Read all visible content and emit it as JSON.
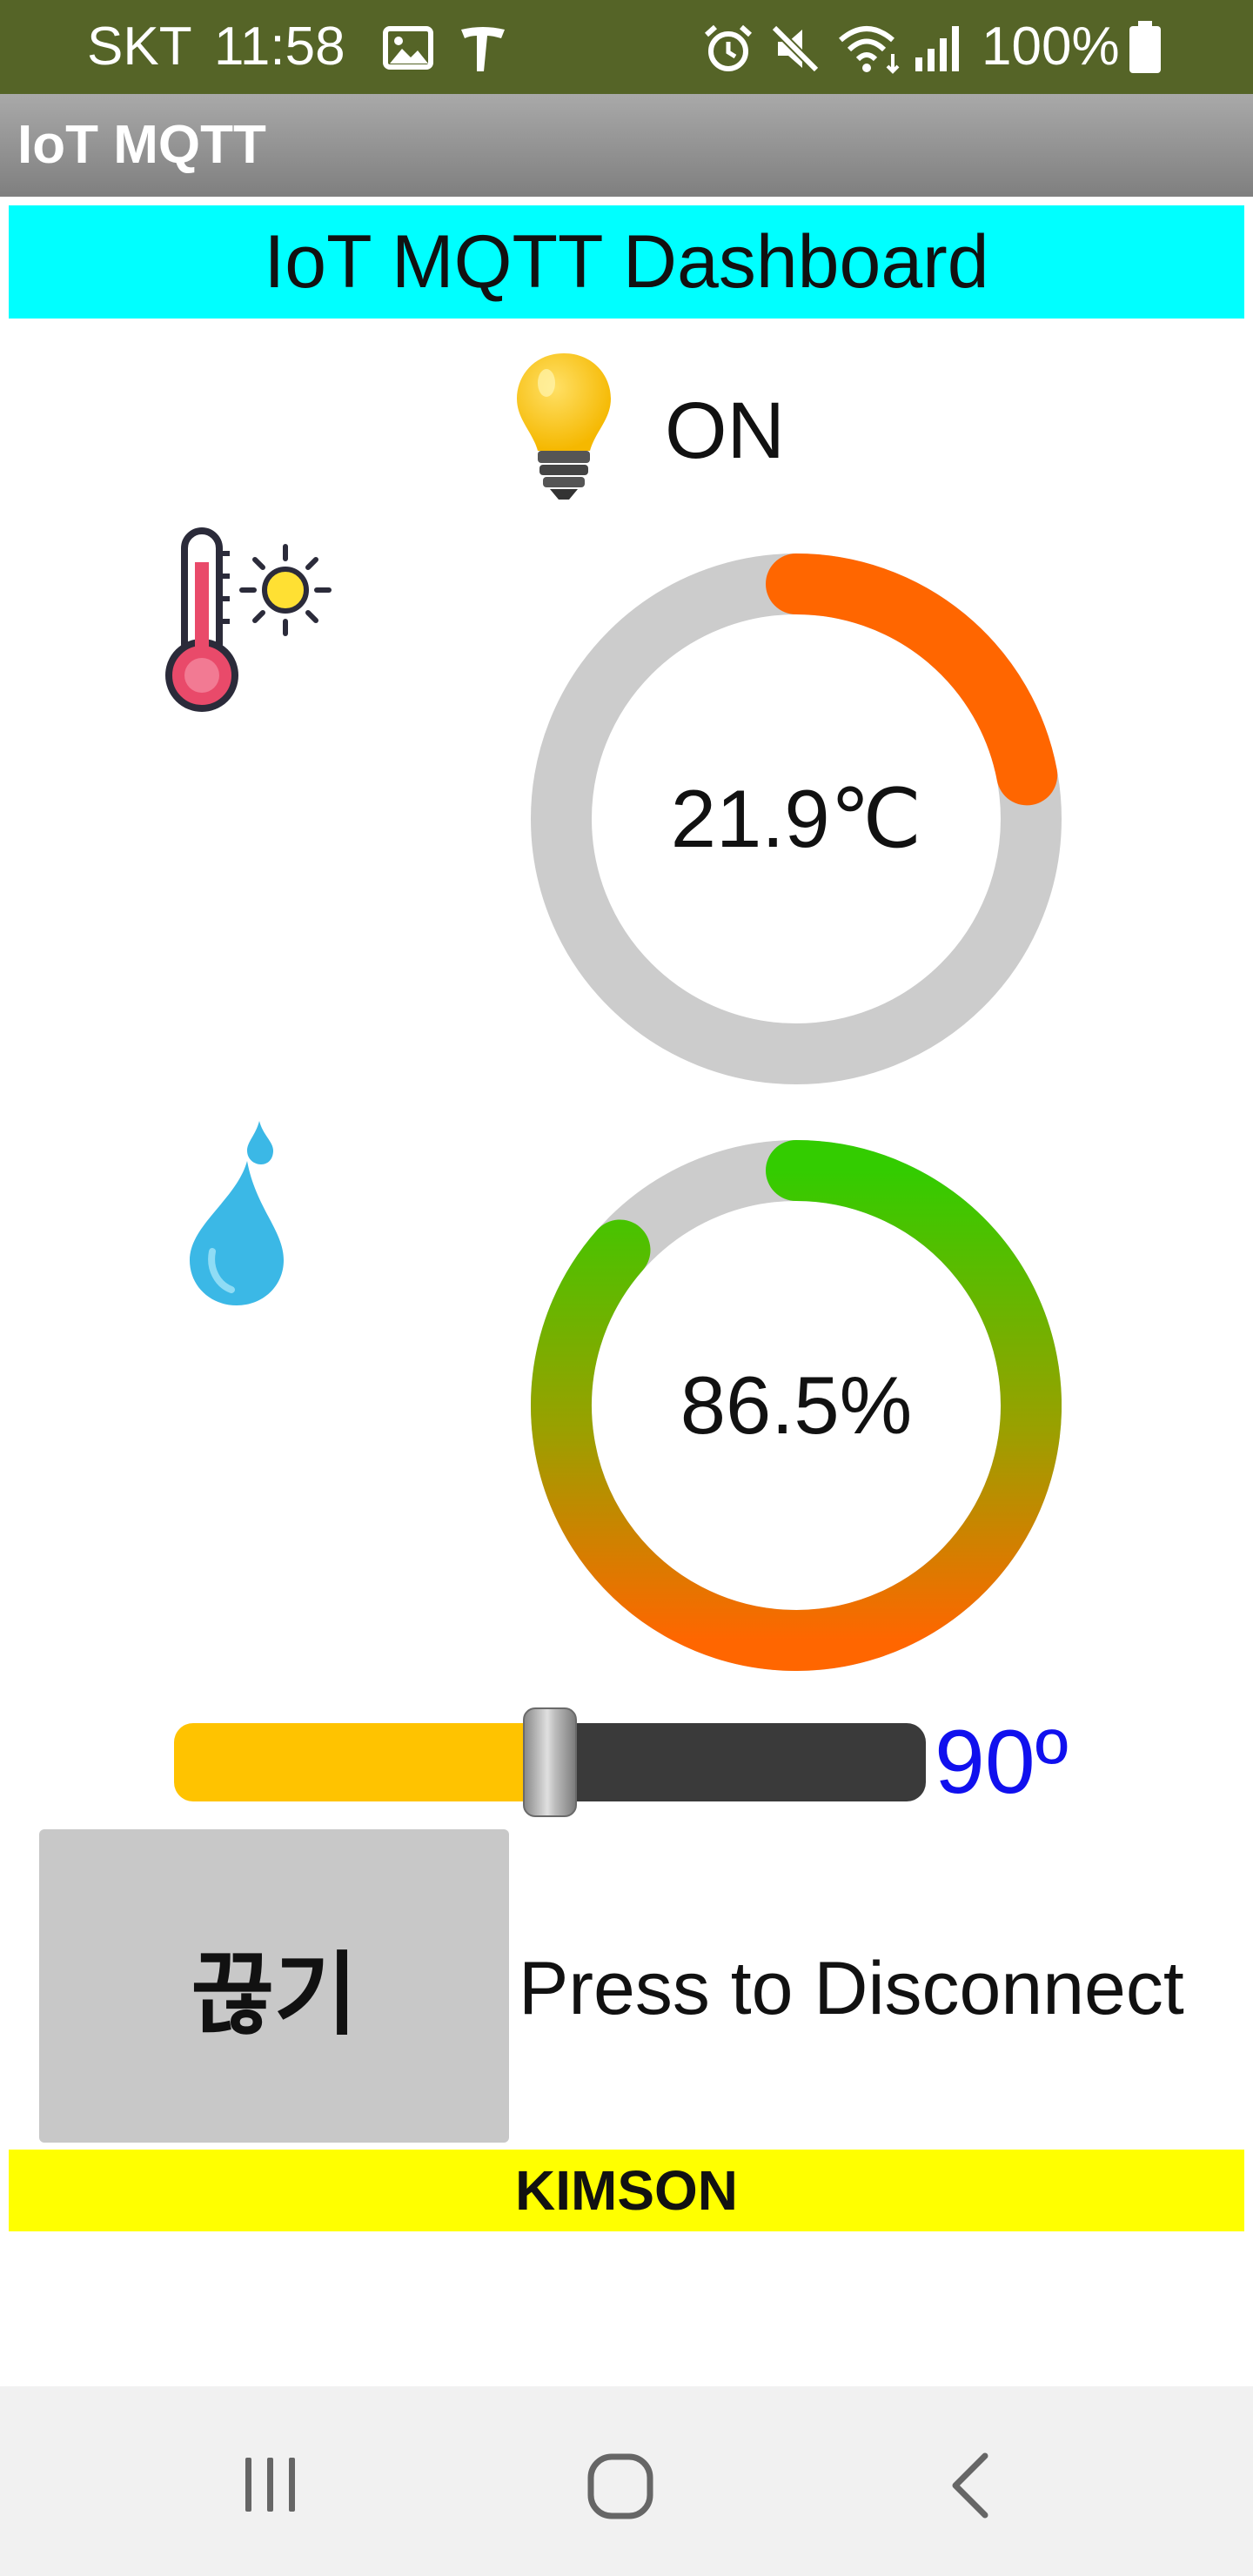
{
  "status_bar": {
    "carrier": "SKT",
    "time": "11:58",
    "battery": "100%"
  },
  "app_bar": {
    "title": "IoT MQTT"
  },
  "dashboard": {
    "header": "IoT MQTT Dashboard",
    "light": {
      "icon": "lightbulb-icon",
      "status": "ON"
    },
    "temperature": {
      "icon": "thermometer-sun-icon",
      "label": "21.9℃",
      "progress_fraction": 0.22,
      "arc_color": "#ff6600",
      "track_color": "#cccccc"
    },
    "humidity": {
      "icon": "water-drop-icon",
      "label": "86.5%",
      "progress_fraction": 0.865,
      "arc_color_start": "#33cc00",
      "arc_color_end": "#ff6600",
      "track_color": "#cccccc"
    },
    "servo_slider": {
      "value_label": "90º",
      "fill_fraction": 0.5,
      "fill_color": "#ffc300",
      "track_color": "#3a3a3a"
    },
    "disconnect": {
      "button_label": "끊기",
      "hint": "Press to Disconnect"
    },
    "footer": "KIMSON"
  },
  "colors": {
    "status_bar": "#556427",
    "header_bg": "#00ffff",
    "footer_bg": "#ffff00",
    "slider_value": "#1010ee"
  },
  "nav_bar": {
    "icons": [
      "recent-apps-icon",
      "home-icon",
      "back-icon"
    ]
  }
}
